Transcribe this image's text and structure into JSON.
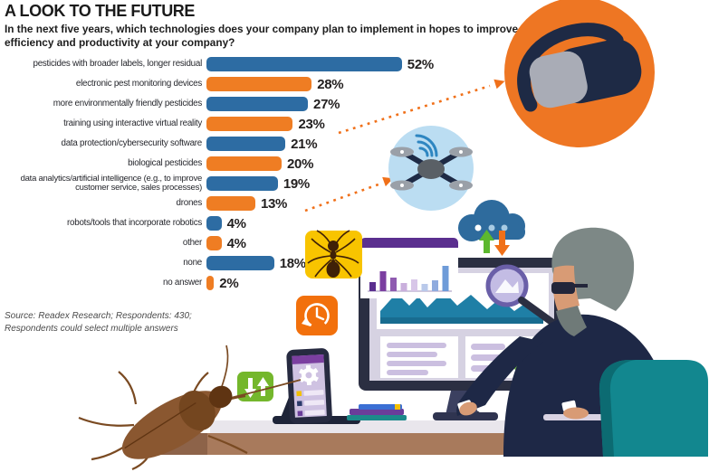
{
  "header": {
    "title": "A LOOK TO THE FUTURE",
    "subtitle": "In the next five years, which technologies does your company plan to implement in hopes to improve efficiency and productivity at your company?"
  },
  "chart_data": {
    "type": "bar",
    "orientation": "horizontal",
    "unit": "%",
    "categories": [
      "pesticides with broader labels, longer residual",
      "electronic pest monitoring devices",
      "more environmentally friendly pesticides",
      "training using interactive virtual reality",
      "data protection/cybersecurity software",
      "biological pesticides",
      "data analytics/artificial intelligence (e.g., to improve customer service, sales processes)",
      "drones",
      "robots/tools that incorporate robotics",
      "other",
      "none",
      "no answer"
    ],
    "values": [
      52,
      28,
      27,
      23,
      21,
      20,
      19,
      13,
      4,
      4,
      18,
      2
    ],
    "bar_colors": [
      "#2D6CA3",
      "#EF7D23",
      "#2D6CA3",
      "#EF7D23",
      "#2D6CA3",
      "#EF7D23",
      "#2D6CA3",
      "#EF7D23",
      "#2D6CA3",
      "#EF7D23",
      "#2D6CA3",
      "#EF7D23"
    ],
    "xlim": [
      0,
      60
    ],
    "grid": false,
    "legend": "none",
    "value_labels": "right-of-bar"
  },
  "annotations": {
    "vr_arrow_from": "training using interactive virtual reality",
    "drone_arrow_from": "drones"
  },
  "source": {
    "line1": "Source: Readex Research; Respondents: 430;",
    "line2": "Respondents could select multiple answers"
  },
  "colors": {
    "bar_blue": "#2D6CA3",
    "bar_orange": "#EF7D23",
    "vr_circle_orange": "#EE7623",
    "drone_circle_blue": "#BBDDF2",
    "arrow_orange": "#F07019",
    "chair_teal": "#12878F",
    "suit_navy": "#1E2846",
    "desk_brown": "#A87A5C",
    "ant_square_yellow": "#F8C400",
    "clock_square_orange": "#F2700C",
    "sync_square_green": "#74B72C"
  },
  "illustrations": [
    "vr-headset-icon",
    "drone-icon",
    "cloud-transfer-icon",
    "ant-icon",
    "history-clock-icon",
    "mini-bar-chart-icon",
    "dashboard-monitor-icon",
    "magnifier-icon",
    "pie-chart-icon",
    "smartphone-icon",
    "sync-arrows-icon",
    "books-icon",
    "mouse-icon",
    "keyboard-icon",
    "analyst-person",
    "office-chair-icon",
    "cockroach-icon"
  ]
}
